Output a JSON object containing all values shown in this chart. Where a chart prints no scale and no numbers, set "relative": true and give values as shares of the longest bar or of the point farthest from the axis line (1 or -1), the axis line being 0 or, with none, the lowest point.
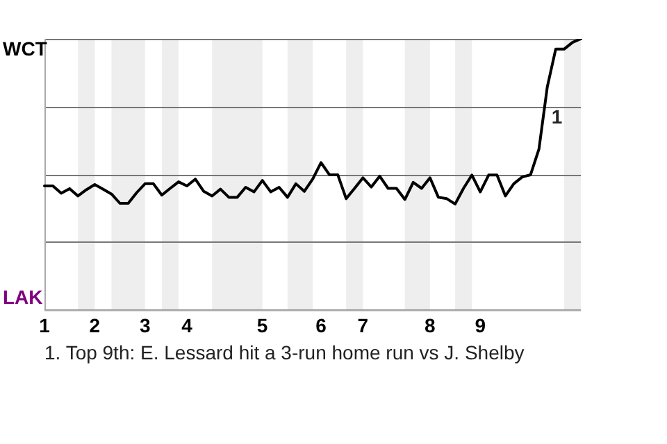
{
  "chart_data": {
    "type": "line",
    "categories": [
      "1",
      null,
      null,
      null,
      null,
      null,
      "2",
      null,
      null,
      null,
      null,
      null,
      "3",
      null,
      null,
      null,
      null,
      "4",
      null,
      null,
      null,
      null,
      null,
      null,
      null,
      null,
      "5",
      null,
      null,
      null,
      null,
      null,
      null,
      "6",
      null,
      null,
      null,
      null,
      "7",
      null,
      null,
      null,
      null,
      null,
      null,
      null,
      "8",
      null,
      null,
      null,
      null,
      null,
      "9",
      null,
      null,
      null,
      null,
      null,
      null,
      null,
      null,
      null,
      null,
      null,
      null
    ],
    "series": [
      {
        "color": "#000000",
        "values": [
          0.457,
          0.457,
          0.43,
          0.447,
          0.42,
          0.443,
          0.462,
          0.445,
          0.427,
          0.393,
          0.393,
          0.432,
          0.465,
          0.465,
          0.423,
          0.448,
          0.472,
          0.457,
          0.482,
          0.437,
          0.42,
          0.445,
          0.415,
          0.415,
          0.452,
          0.435,
          0.477,
          0.435,
          0.452,
          0.415,
          0.465,
          0.437,
          0.482,
          0.543,
          0.498,
          0.498,
          0.41,
          0.448,
          0.487,
          0.453,
          0.493,
          0.448,
          0.448,
          0.407,
          0.47,
          0.448,
          0.487,
          0.415,
          0.41,
          0.39,
          0.448,
          0.497,
          0.435,
          0.497,
          0.497,
          0.42,
          0.465,
          0.49,
          0.498,
          0.593,
          0.823,
          0.962,
          0.962,
          0.987,
          1
        ]
      }
    ],
    "relative": true,
    "grid": "y",
    "annotations": [
      "WCT",
      "LAK",
      "1",
      "1. Top 9th: E. Lessard hit a 3-run home run vs J. Shelby"
    ],
    "legend": false,
    "marker": "none",
    "line_style": "solid"
  }
}
